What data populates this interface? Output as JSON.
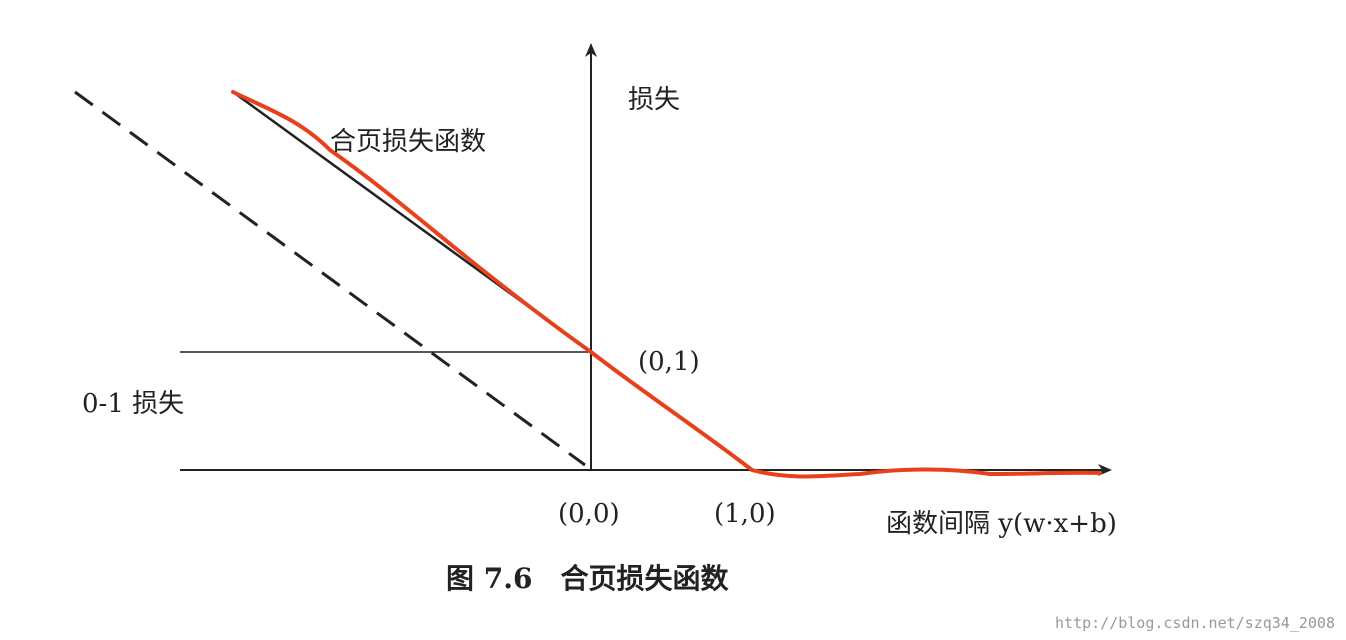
{
  "y_axis_label": "损失",
  "hinge_label": "合页损失函数",
  "point_01": "(0,1)",
  "zero_one_label": "0-1 损失",
  "point_00": "(0,0)",
  "point_10": "(1,0)",
  "x_axis_label": "函数间隔 y(w·x+b)",
  "caption": "图 7.6　合页损失函数",
  "watermark": "http://blog.csdn.net/szq34_2008"
}
